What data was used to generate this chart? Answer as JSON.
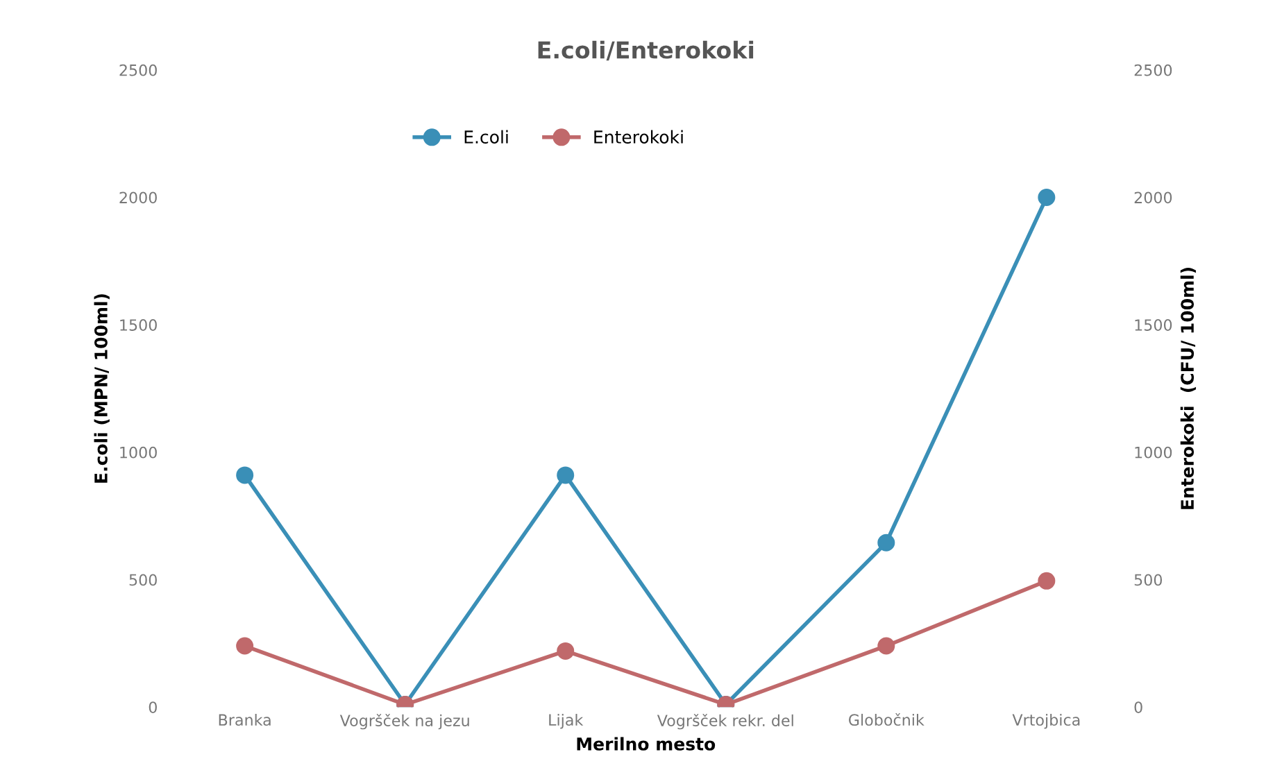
{
  "chart_data": {
    "type": "line",
    "title": "E.coli/Enterokoki",
    "xlabel": "Merilno mesto",
    "ylabel": "E.coli (MPN/ 100ml)",
    "y2label": "Enterokoki  (CFU/ 100ml)",
    "categories": [
      "Branka",
      "Vogršček na jezu",
      "Lijak",
      "Vogršček rekr. del",
      "Globočnik",
      "Vrtojbica"
    ],
    "series": [
      {
        "name": "E.coli",
        "color": "#3a8fb7",
        "values": [
          910,
          10,
          910,
          10,
          645,
          2000
        ]
      },
      {
        "name": "Enterokoki",
        "color": "#c0696b",
        "values": [
          240,
          10,
          220,
          10,
          240,
          495
        ]
      }
    ],
    "ylim": [
      0,
      2500
    ],
    "yticks": [
      0,
      500,
      1000,
      1500,
      2000,
      2500
    ],
    "y2lim": [
      0,
      2500
    ],
    "y2ticks": [
      0,
      500,
      1000,
      1500,
      2000,
      2500
    ],
    "marker": "circle",
    "line_style": "solid",
    "legend": "top",
    "grid": false
  }
}
